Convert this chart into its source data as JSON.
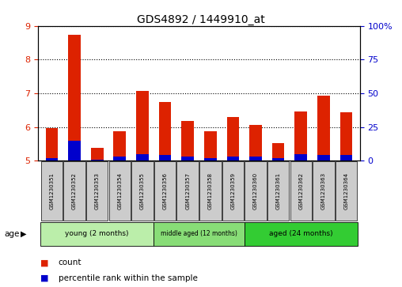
{
  "title": "GDS4892 / 1449910_at",
  "samples": [
    "GSM1230351",
    "GSM1230352",
    "GSM1230353",
    "GSM1230354",
    "GSM1230355",
    "GSM1230356",
    "GSM1230357",
    "GSM1230358",
    "GSM1230359",
    "GSM1230360",
    "GSM1230361",
    "GSM1230362",
    "GSM1230363",
    "GSM1230364"
  ],
  "count_values": [
    5.97,
    8.73,
    5.37,
    5.87,
    7.07,
    6.73,
    6.17,
    5.87,
    6.3,
    6.07,
    5.53,
    6.47,
    6.93,
    6.43
  ],
  "percentile_values": [
    2,
    15,
    1,
    3,
    5,
    4,
    3,
    2,
    3,
    3,
    2,
    5,
    4,
    4
  ],
  "ylim_left": [
    5,
    9
  ],
  "ylim_right": [
    0,
    100
  ],
  "yticks_left": [
    5,
    6,
    7,
    8,
    9
  ],
  "yticks_right": [
    0,
    25,
    50,
    75,
    100
  ],
  "ytick_labels_right": [
    "0",
    "25",
    "50",
    "75",
    "100%"
  ],
  "ytick_labels_left": [
    "5",
    "6",
    "7",
    "8",
    "9"
  ],
  "left_tick_color": "#dd2200",
  "right_tick_color": "#0000cc",
  "bar_color_red": "#dd2200",
  "bar_color_blue": "#0000cc",
  "groups": [
    {
      "label": "young (2 months)",
      "start": 0,
      "end": 5,
      "color": "#bbeeaa"
    },
    {
      "label": "middle aged (12 months)",
      "start": 5,
      "end": 9,
      "color": "#88dd77"
    },
    {
      "label": "aged (24 months)",
      "start": 9,
      "end": 14,
      "color": "#33cc33"
    }
  ],
  "sample_box_color": "#cccccc",
  "background_color": "#ffffff",
  "legend_count_label": "count",
  "legend_pct_label": "percentile rank within the sample",
  "age_label": "age",
  "bar_width": 0.55
}
